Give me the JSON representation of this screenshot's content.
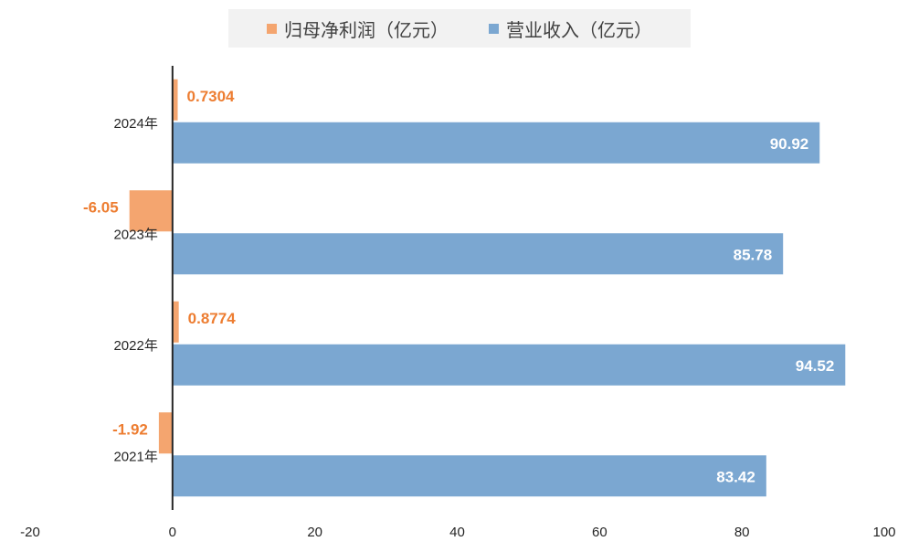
{
  "chart_data": {
    "type": "bar",
    "orientation": "horizontal",
    "categories": [
      "2024年",
      "2023年",
      "2022年",
      "2021年"
    ],
    "series": [
      {
        "name": "归母净利润（亿元）",
        "color": "#f4a56f",
        "label_color": "#ed7d31",
        "values": [
          0.7304,
          -6.05,
          0.8774,
          -1.92
        ],
        "labels": [
          "0.7304",
          "-6.05",
          "0.8774",
          "-1.92"
        ]
      },
      {
        "name": "营业收入（亿元）",
        "color": "#7ba7d1",
        "label_color": "#ffffff",
        "values": [
          90.92,
          85.78,
          94.52,
          83.42
        ],
        "labels": [
          "90.92",
          "85.78",
          "94.52",
          "83.42"
        ]
      }
    ],
    "xlim": [
      -20,
      100
    ],
    "xticks": [
      -20,
      0,
      20,
      40,
      60,
      80,
      100
    ],
    "xtick_labels": [
      "-20",
      "0",
      "20",
      "40",
      "60",
      "80",
      "100"
    ],
    "grid": false,
    "legend_position": "top"
  }
}
